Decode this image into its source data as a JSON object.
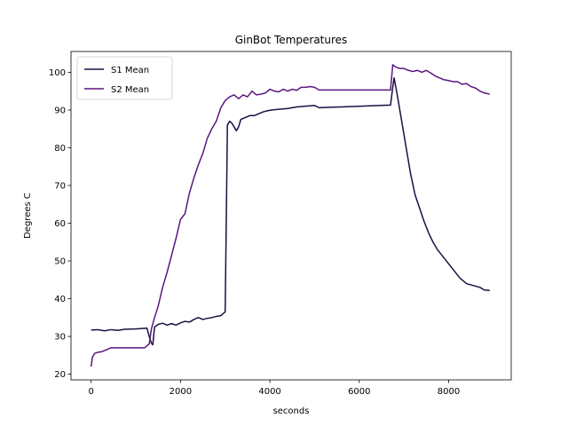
{
  "chart_data": {
    "type": "line",
    "title": "GinBot Temperatures",
    "xlabel": "seconds",
    "ylabel": "Degrees C",
    "xlim": [
      -450,
      9400
    ],
    "ylim": [
      18.5,
      105.5
    ],
    "xticks": [
      0,
      2000,
      4000,
      6000,
      8000
    ],
    "yticks": [
      20,
      30,
      40,
      50,
      60,
      70,
      80,
      90,
      100
    ],
    "grid": false,
    "legend": "top-left",
    "series": [
      {
        "name": "S1 Mean",
        "color": "#1b1044",
        "points": [
          [
            0,
            31.7
          ],
          [
            150,
            31.8
          ],
          [
            300,
            31.5
          ],
          [
            450,
            31.8
          ],
          [
            600,
            31.6
          ],
          [
            750,
            31.9
          ],
          [
            1000,
            32.0
          ],
          [
            1250,
            32.2
          ],
          [
            1300,
            30.0
          ],
          [
            1350,
            28.2
          ],
          [
            1380,
            27.8
          ],
          [
            1420,
            32.5
          ],
          [
            1500,
            33.2
          ],
          [
            1600,
            33.5
          ],
          [
            1700,
            33.0
          ],
          [
            1800,
            33.4
          ],
          [
            1900,
            33.0
          ],
          [
            2000,
            33.6
          ],
          [
            2100,
            34.0
          ],
          [
            2200,
            33.8
          ],
          [
            2300,
            34.5
          ],
          [
            2400,
            35.0
          ],
          [
            2500,
            34.5
          ],
          [
            2600,
            34.8
          ],
          [
            2700,
            35.0
          ],
          [
            2800,
            35.3
          ],
          [
            2900,
            35.5
          ],
          [
            2950,
            36.0
          ],
          [
            3000,
            36.5
          ],
          [
            3050,
            86.0
          ],
          [
            3100,
            87.0
          ],
          [
            3150,
            86.5
          ],
          [
            3200,
            85.5
          ],
          [
            3250,
            84.5
          ],
          [
            3300,
            85.5
          ],
          [
            3350,
            87.5
          ],
          [
            3450,
            88.0
          ],
          [
            3550,
            88.5
          ],
          [
            3650,
            88.5
          ],
          [
            3750,
            89.0
          ],
          [
            3850,
            89.5
          ],
          [
            3950,
            89.8
          ],
          [
            4050,
            90.0
          ],
          [
            4200,
            90.2
          ],
          [
            4400,
            90.4
          ],
          [
            4600,
            90.8
          ],
          [
            4800,
            91.0
          ],
          [
            5000,
            91.2
          ],
          [
            5100,
            90.6
          ],
          [
            6700,
            91.3
          ],
          [
            6750,
            96.0
          ],
          [
            6780,
            98.5
          ],
          [
            6850,
            94.0
          ],
          [
            6950,
            87.0
          ],
          [
            7050,
            80.0
          ],
          [
            7150,
            73.0
          ],
          [
            7250,
            67.5
          ],
          [
            7350,
            64.0
          ],
          [
            7450,
            60.5
          ],
          [
            7550,
            57.5
          ],
          [
            7650,
            55.0
          ],
          [
            7750,
            53.0
          ],
          [
            7850,
            51.5
          ],
          [
            7950,
            50.0
          ],
          [
            8050,
            48.5
          ],
          [
            8150,
            47.0
          ],
          [
            8250,
            45.5
          ],
          [
            8400,
            44.0
          ],
          [
            8550,
            43.5
          ],
          [
            8700,
            43.0
          ],
          [
            8800,
            42.3
          ],
          [
            8920,
            42.2
          ]
        ]
      },
      {
        "name": "S2 Mean",
        "color": "#5b1580",
        "points": [
          [
            0,
            22.0
          ],
          [
            30,
            24.5
          ],
          [
            80,
            25.5
          ],
          [
            150,
            25.8
          ],
          [
            250,
            26.0
          ],
          [
            350,
            26.5
          ],
          [
            450,
            27.0
          ],
          [
            600,
            27.0
          ],
          [
            800,
            27.0
          ],
          [
            1000,
            27.0
          ],
          [
            1200,
            27.0
          ],
          [
            1300,
            28.0
          ],
          [
            1350,
            32.0
          ],
          [
            1420,
            35.0
          ],
          [
            1500,
            38.0
          ],
          [
            1600,
            43.0
          ],
          [
            1700,
            47.0
          ],
          [
            1800,
            51.5
          ],
          [
            1900,
            56.0
          ],
          [
            2000,
            61.0
          ],
          [
            2100,
            62.5
          ],
          [
            2200,
            68.0
          ],
          [
            2300,
            72.0
          ],
          [
            2400,
            75.5
          ],
          [
            2500,
            78.5
          ],
          [
            2600,
            82.5
          ],
          [
            2700,
            85.0
          ],
          [
            2800,
            87.0
          ],
          [
            2900,
            90.5
          ],
          [
            3000,
            92.5
          ],
          [
            3100,
            93.5
          ],
          [
            3200,
            94.0
          ],
          [
            3300,
            93.0
          ],
          [
            3400,
            94.0
          ],
          [
            3500,
            93.5
          ],
          [
            3600,
            95.0
          ],
          [
            3700,
            94.0
          ],
          [
            3800,
            94.2
          ],
          [
            3900,
            94.5
          ],
          [
            4000,
            95.5
          ],
          [
            4100,
            95.0
          ],
          [
            4200,
            94.8
          ],
          [
            4300,
            95.5
          ],
          [
            4400,
            95.0
          ],
          [
            4500,
            95.5
          ],
          [
            4600,
            95.2
          ],
          [
            4700,
            96.0
          ],
          [
            4800,
            96.0
          ],
          [
            4900,
            96.2
          ],
          [
            5000,
            96.0
          ],
          [
            5100,
            95.3
          ],
          [
            6700,
            95.3
          ],
          [
            6750,
            102.0
          ],
          [
            6800,
            101.5
          ],
          [
            6900,
            101.0
          ],
          [
            7000,
            101.0
          ],
          [
            7100,
            100.5
          ],
          [
            7200,
            100.2
          ],
          [
            7300,
            100.5
          ],
          [
            7400,
            100.0
          ],
          [
            7500,
            100.5
          ],
          [
            7600,
            99.8
          ],
          [
            7700,
            99.0
          ],
          [
            7800,
            98.5
          ],
          [
            7900,
            98.0
          ],
          [
            8000,
            97.8
          ],
          [
            8100,
            97.5
          ],
          [
            8200,
            97.5
          ],
          [
            8300,
            96.8
          ],
          [
            8400,
            97.0
          ],
          [
            8500,
            96.2
          ],
          [
            8600,
            95.8
          ],
          [
            8700,
            95.0
          ],
          [
            8800,
            94.5
          ],
          [
            8920,
            94.2
          ]
        ]
      }
    ]
  }
}
